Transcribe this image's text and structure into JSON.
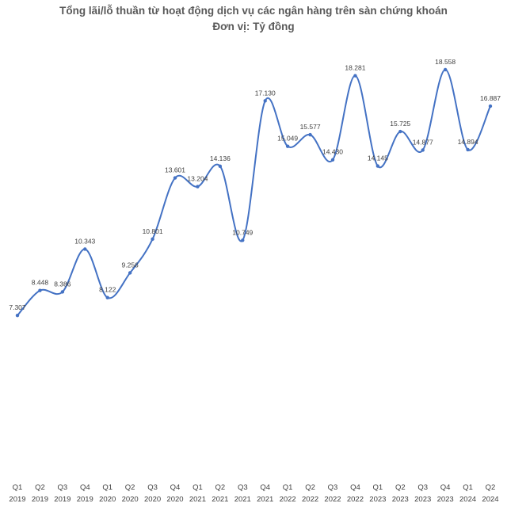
{
  "chart_data": {
    "type": "line",
    "title": "Tổng lãi/lỗ thuần từ hoạt động dịch vụ các ngân hàng trên sàn chứng khoán",
    "subtitle": "Đơn vị: Tỷ đồng",
    "smooth": true,
    "grid": false,
    "legend": "none",
    "line_color": "#4472C4",
    "categories": [
      [
        "Q1",
        "2019"
      ],
      [
        "Q2",
        "2019"
      ],
      [
        "Q3",
        "2019"
      ],
      [
        "Q4",
        "2019"
      ],
      [
        "Q1",
        "2020"
      ],
      [
        "Q2",
        "2020"
      ],
      [
        "Q3",
        "2020"
      ],
      [
        "Q4",
        "2020"
      ],
      [
        "Q1",
        "2021"
      ],
      [
        "Q2",
        "2021"
      ],
      [
        "Q3",
        "2021"
      ],
      [
        "Q4",
        "2021"
      ],
      [
        "Q1",
        "2022"
      ],
      [
        "Q2",
        "2022"
      ],
      [
        "Q3",
        "2022"
      ],
      [
        "Q4",
        "2022"
      ],
      [
        "Q1",
        "2023"
      ],
      [
        "Q2",
        "2023"
      ],
      [
        "Q3",
        "2023"
      ],
      [
        "Q4",
        "2023"
      ],
      [
        "Q1",
        "2024"
      ],
      [
        "Q2",
        "2024"
      ]
    ],
    "values": [
      7307,
      8448,
      8386,
      10343,
      8122,
      9256,
      10801,
      13601,
      13204,
      14136,
      10749,
      17130,
      15049,
      15577,
      14430,
      18281,
      14145,
      15725,
      14877,
      18558,
      14894,
      16887
    ],
    "value_labels": [
      "7.307",
      "8.448",
      "8.386",
      "10.343",
      "8.122",
      "9.256",
      "10.801",
      "13.601",
      "13.204",
      "14.136",
      "10.749",
      "17.130",
      "15.049",
      "15.577",
      "14.430",
      "18.281",
      "14.145",
      "15.725",
      "14.877",
      "18.558",
      "14.894",
      "16.887"
    ]
  }
}
